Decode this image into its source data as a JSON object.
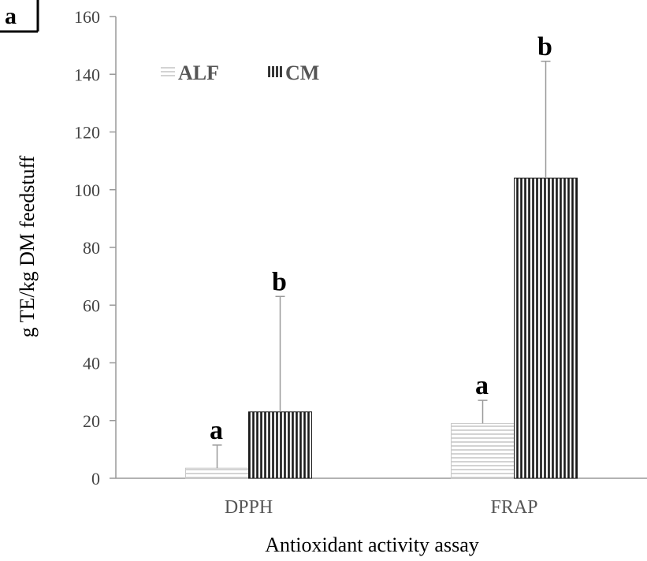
{
  "panel_label": "a",
  "chart_data": {
    "type": "bar",
    "categories": [
      "DPPH",
      "FRAP"
    ],
    "series": [
      {
        "name": "ALF",
        "values": [
          3.5,
          19
        ],
        "error": [
          8,
          8
        ],
        "significance": [
          "a",
          "a"
        ]
      },
      {
        "name": "CM",
        "values": [
          23,
          104
        ],
        "error": [
          40,
          40.5
        ],
        "significance": [
          "b",
          "b"
        ]
      }
    ],
    "title": "",
    "xlabel": "Antioxidant activity assay",
    "ylabel": "g TE/kg DM feedstuff",
    "ylim": [
      0,
      160
    ],
    "yticks": [
      0,
      20,
      40,
      60,
      80,
      100,
      120,
      140,
      160
    ],
    "grid": false,
    "legend_position": "top-left"
  },
  "colors": {
    "alf_hatch": "#c8c8c8",
    "cm_hatch": "#1a1a1a",
    "axis": "#999999",
    "error_bar": "#999999"
  }
}
